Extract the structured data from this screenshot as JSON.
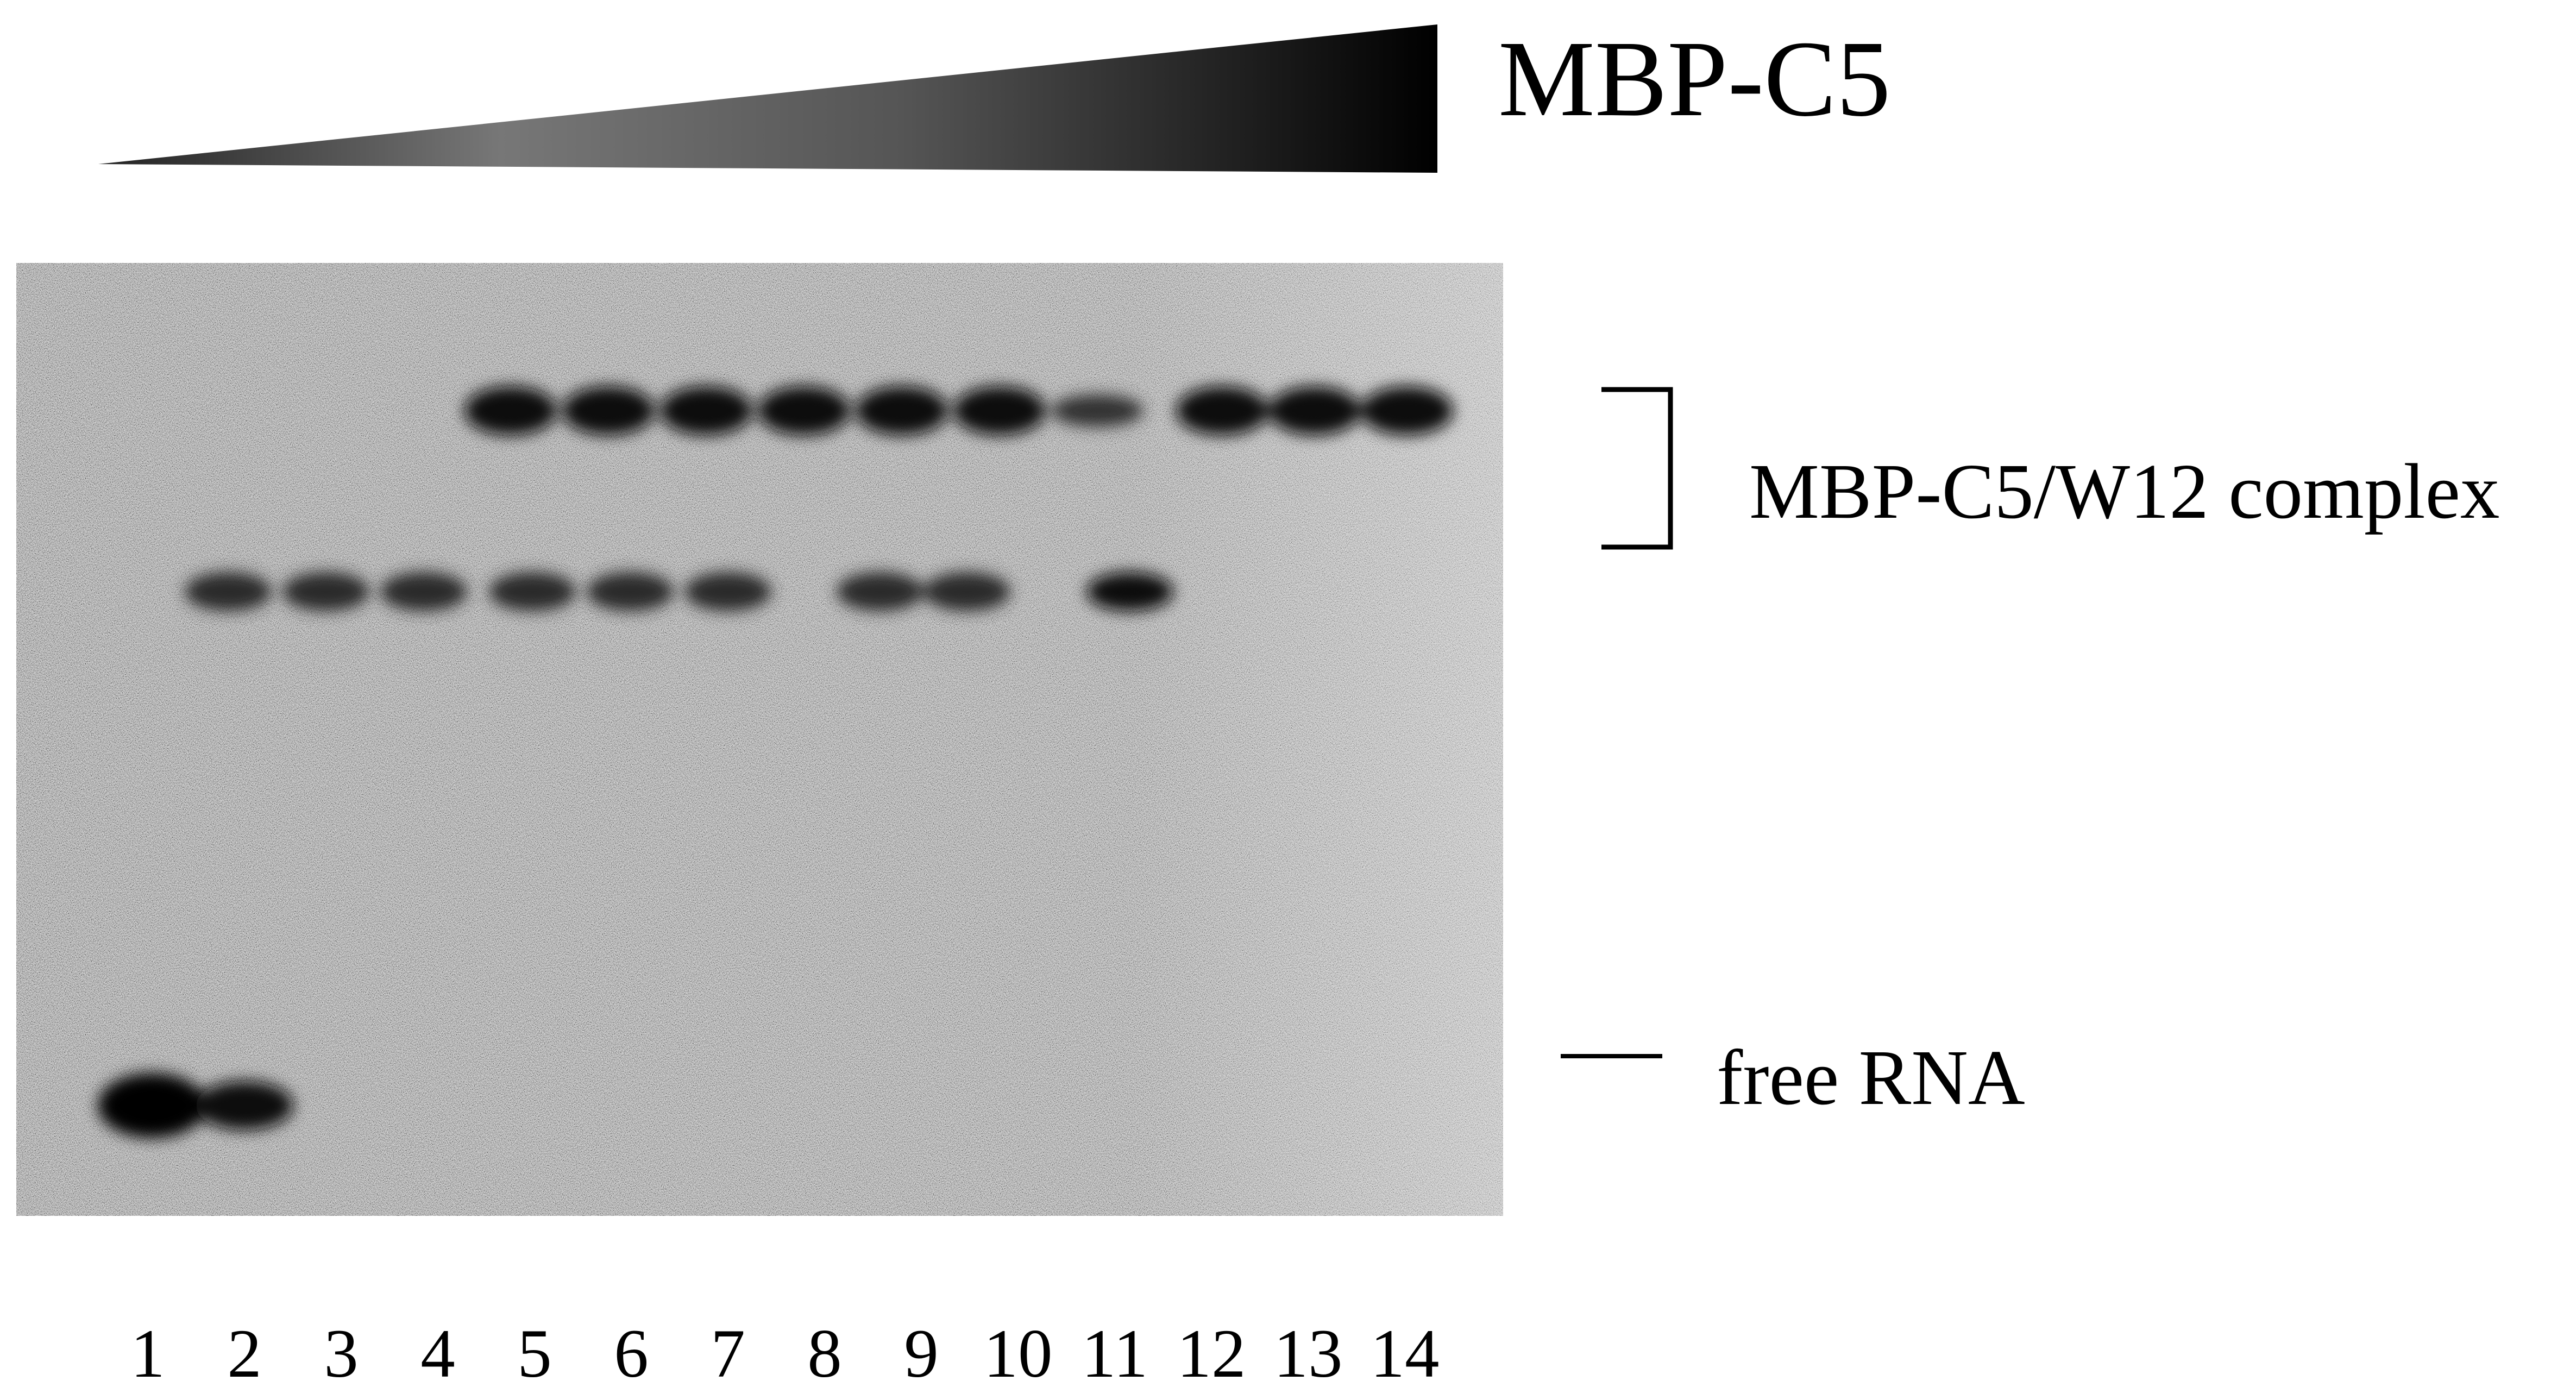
{
  "title": "MBP-C5",
  "labels": {
    "complex": "MBP-C5/W12 complex",
    "free": "free RNA"
  },
  "lanes": [
    "1",
    "2",
    "3",
    "4",
    "5",
    "6",
    "7",
    "8",
    "9",
    "10",
    "11",
    "12",
    "13",
    "14"
  ]
}
